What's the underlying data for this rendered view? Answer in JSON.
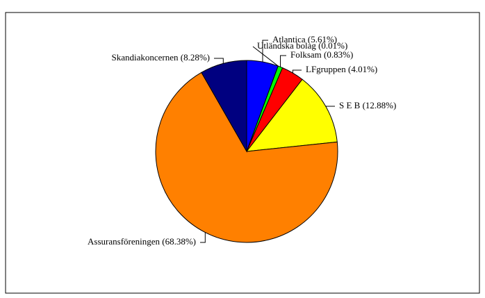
{
  "chart_data": {
    "type": "pie",
    "values": [
      5.61,
      0.01,
      0.83,
      4.01,
      12.88,
      68.38,
      8.28
    ],
    "value_labels": [
      "Atlantica (5.61%)",
      "Utländska bolag (0.01%)",
      "Folksam (0.83%)",
      "LFgruppen (4.01%)",
      "S E B (12.88%)",
      "Assuransföreningen (68.38%)",
      "Skandiakoncernen (8.28%)"
    ],
    "colors": [
      "#0000ff",
      "#8000ff",
      "#00ff00",
      "#ff0000",
      "#ffff00",
      "#ff8000",
      "#000080"
    ]
  }
}
